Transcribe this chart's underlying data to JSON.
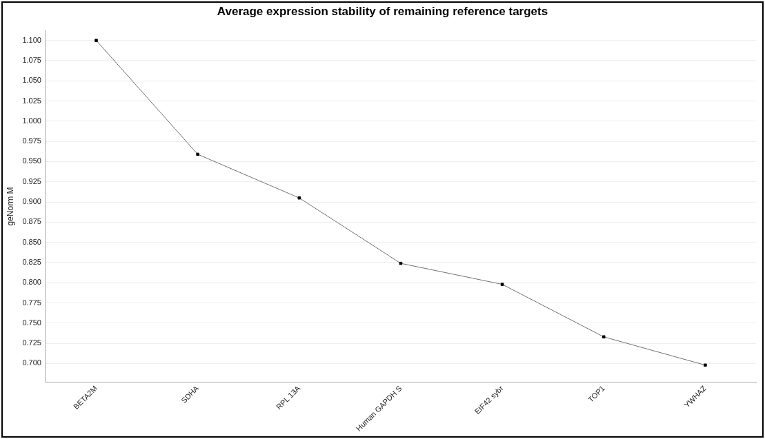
{
  "chart_data": {
    "type": "line",
    "title": "Average expression stability of remaining reference targets",
    "ylabel": "geNorm M",
    "categories": [
      "BETA2M",
      "SDHA",
      "RPL 13A",
      "Human GAPDH S",
      "EIF42 sybr",
      "TOP1",
      "YWHAZ"
    ],
    "series": [
      {
        "color": "#707070",
        "values": [
          1.1,
          0.959,
          0.905,
          0.824,
          0.798,
          0.733,
          0.698
        ]
      }
    ],
    "ylim": [
      0.677,
      1.112
    ],
    "yticks": [
      {
        "value": 0.7,
        "label": "0.700"
      },
      {
        "value": 0.725,
        "label": "0.725"
      },
      {
        "value": 0.75,
        "label": "0.750"
      },
      {
        "value": 0.775,
        "label": "0.775"
      },
      {
        "value": 0.8,
        "label": "0.800"
      },
      {
        "value": 0.825,
        "label": "0.825"
      },
      {
        "value": 0.85,
        "label": "0.850"
      },
      {
        "value": 0.875,
        "label": "0.875"
      },
      {
        "value": 0.9,
        "label": "0.900"
      },
      {
        "value": 0.925,
        "label": "0.925"
      },
      {
        "value": 0.95,
        "label": "0.950"
      },
      {
        "value": 0.975,
        "label": "0.975"
      },
      {
        "value": 1.0,
        "label": "1.000"
      },
      {
        "value": 1.025,
        "label": "1.025"
      },
      {
        "value": 1.05,
        "label": "1.050"
      },
      {
        "value": 1.075,
        "label": "1.075"
      },
      {
        "value": 1.1,
        "label": "1.100"
      }
    ],
    "grid": "y",
    "marker": "square",
    "legend": false
  }
}
